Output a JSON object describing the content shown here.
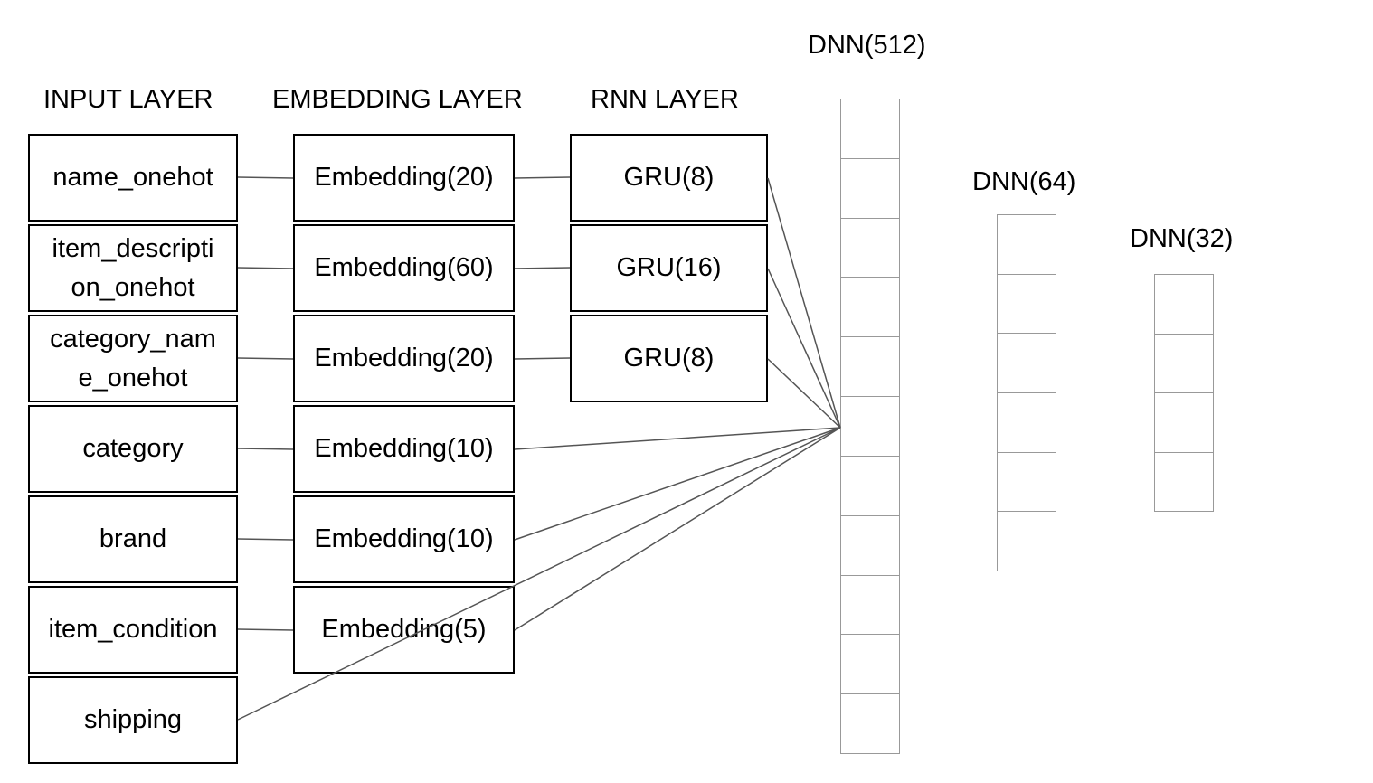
{
  "headers": {
    "input": "INPUT LAYER",
    "embedding": "EMBEDDING LAYER",
    "rnn": "RNN LAYER"
  },
  "inputs": [
    {
      "line1": "name_onehot",
      "line2": ""
    },
    {
      "line1": "item_descripti",
      "line2": "on_onehot"
    },
    {
      "line1": "category_nam",
      "line2": "e_onehot"
    },
    {
      "line1": "category",
      "line2": ""
    },
    {
      "line1": "brand",
      "line2": ""
    },
    {
      "line1": "item_condition",
      "line2": ""
    },
    {
      "line1": "shipping",
      "line2": ""
    }
  ],
  "embeddings": [
    "Embedding(20)",
    "Embedding(60)",
    "Embedding(20)",
    "Embedding(10)",
    "Embedding(10)",
    "Embedding(5)"
  ],
  "rnns": [
    "GRU(8)",
    "GRU(16)",
    "GRU(8)"
  ],
  "dnn": [
    {
      "label": "DNN(512)",
      "cells": 11
    },
    {
      "label": "DNN(64)",
      "cells": 6
    },
    {
      "label": "DNN(32)",
      "cells": 4
    }
  ],
  "colors": {
    "box_border": "#000000",
    "dnn_border": "#999999",
    "connector": "#555555"
  }
}
